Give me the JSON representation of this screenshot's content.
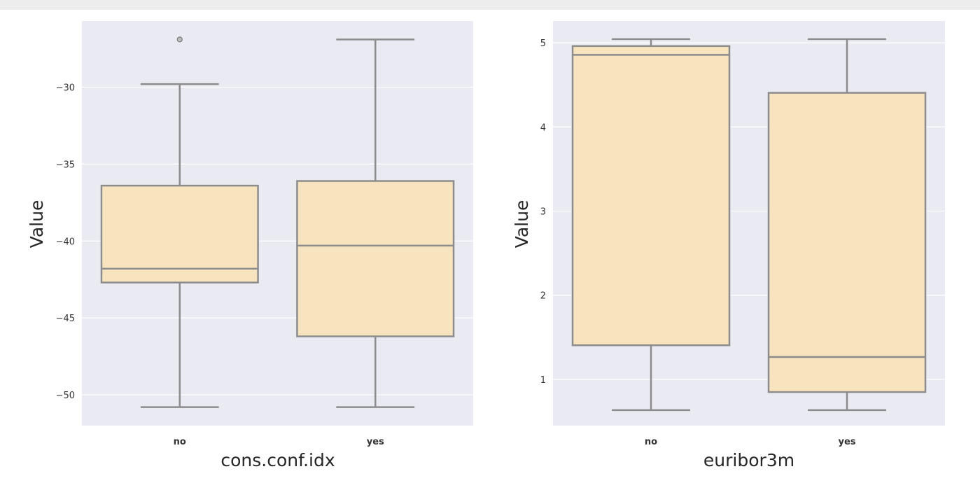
{
  "style": {
    "plot_background": "#eaeaf2",
    "grid_color": "#ffffff",
    "box_fill": "#f7e4bf",
    "box_edge": "#8c8c8c"
  },
  "chart_data": [
    {
      "type": "box",
      "xlabel": "cons.conf.idx",
      "ylabel": "Value",
      "categories": [
        "no",
        "yes"
      ],
      "ylim": [
        -52,
        -25.7
      ],
      "yticks": [
        -50,
        -45,
        -40,
        -35,
        -30
      ],
      "grid": true,
      "boxes": [
        {
          "category": "no",
          "whisker_low": -50.8,
          "q1": -42.7,
          "median": -41.8,
          "q3": -36.4,
          "whisker_high": -29.8,
          "outliers": [
            -26.9
          ]
        },
        {
          "category": "yes",
          "whisker_low": -50.8,
          "q1": -46.2,
          "median": -40.3,
          "q3": -36.1,
          "whisker_high": -26.9,
          "outliers": []
        }
      ]
    },
    {
      "type": "box",
      "xlabel": "euribor3m",
      "ylabel": "Value",
      "categories": [
        "no",
        "yes"
      ],
      "ylim": [
        0.45,
        5.26
      ],
      "yticks": [
        1,
        2,
        3,
        4,
        5
      ],
      "grid": true,
      "boxes": [
        {
          "category": "no",
          "whisker_low": 0.634,
          "q1": 1.405,
          "median": 4.857,
          "q3": 4.962,
          "whisker_high": 5.045,
          "outliers": []
        },
        {
          "category": "yes",
          "whisker_low": 0.634,
          "q1": 0.849,
          "median": 1.266,
          "q3": 4.406,
          "whisker_high": 5.045,
          "outliers": []
        }
      ]
    }
  ]
}
